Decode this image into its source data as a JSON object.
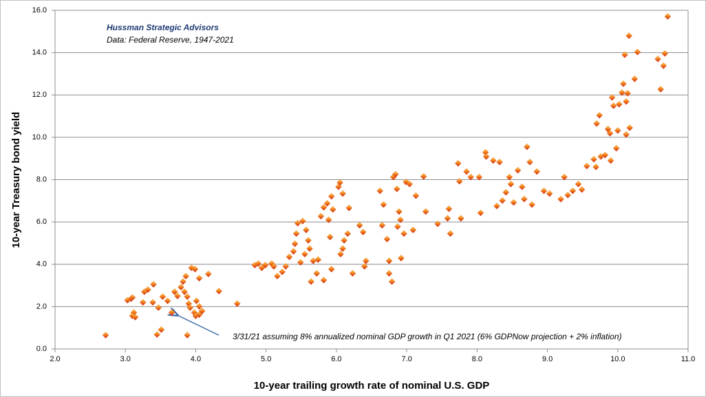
{
  "chart_data": {
    "type": "scatter",
    "title": "Hussman Strategic Advisors",
    "subtitle": "Data: Federal Reserve, 1947-2021",
    "x_label": "10-year trailing growth rate of nominal U.S. GDP",
    "y_label": "10-year Treasury bond yield",
    "annotation": "3/31/21  assuming 8% annualized nominal GDP growth in Q1 2021  (6% GDPNow projection + 2% inflation)",
    "color": "#e8641c",
    "grid": true,
    "xlim": [
      2,
      11
    ],
    "ylim": [
      0,
      16
    ],
    "xticks": [
      {
        "value": 2,
        "label": "2.0"
      },
      {
        "value": 3,
        "label": "3.0"
      },
      {
        "value": 4,
        "label": "4.0"
      },
      {
        "value": 5,
        "label": "5.0"
      },
      {
        "value": 6,
        "label": "6.0"
      },
      {
        "value": 7,
        "label": "7.0"
      },
      {
        "value": 8,
        "label": "8.0"
      },
      {
        "value": 9,
        "label": "9.0"
      },
      {
        "value": 10,
        "label": "10.0"
      },
      {
        "value": 11,
        "label": "11.0"
      }
    ],
    "yticks": [
      {
        "value": 0,
        "label": "0.0"
      },
      {
        "value": 2,
        "label": "2.0"
      },
      {
        "value": 4,
        "label": "4.0"
      },
      {
        "value": 6,
        "label": "6.0"
      },
      {
        "value": 8,
        "label": "8.0"
      },
      {
        "value": 10,
        "label": "10.0"
      },
      {
        "value": 12,
        "label": "12.0"
      },
      {
        "value": 14,
        "label": "14.0"
      },
      {
        "value": 16,
        "label": "16.0"
      }
    ],
    "x": [
      2.72,
      3.03,
      3.08,
      3.1,
      3.12,
      3.1,
      3.14,
      3.27,
      3.32,
      3.4,
      3.39,
      3.25,
      3.47,
      3.45,
      3.51,
      3.53,
      3.6,
      3.66,
      3.7,
      3.74,
      3.79,
      3.82,
      3.86,
      3.84,
      3.88,
      3.9,
      3.92,
      3.94,
      3.99,
      4.01,
      4.05,
      3.98,
      4.0,
      4.05,
      4.09,
      3.88,
      4.05,
      4.18,
      4.33,
      4.59,
      4.84,
      4.89,
      4.94,
      4.99,
      5.08,
      5.11,
      5.16,
      5.23,
      5.28,
      5.33,
      5.39,
      5.41,
      5.43,
      5.45,
      5.52,
      5.57,
      5.6,
      5.55,
      5.49,
      5.62,
      5.67,
      5.64,
      5.72,
      5.74,
      5.78,
      5.82,
      5.87,
      5.89,
      5.91,
      5.95,
      5.93,
      6.03,
      6.05,
      6.09,
      6.11,
      6.16,
      6.09,
      6.06,
      5.82,
      5.93,
      6.23,
      6.18,
      6.33,
      6.38,
      6.4,
      6.42,
      6.62,
      6.67,
      6.65,
      6.72,
      6.75,
      6.79,
      6.75,
      6.81,
      6.84,
      6.86,
      6.89,
      6.91,
      6.87,
      6.96,
      6.92,
      6.99,
      7.04,
      7.09,
      7.13,
      7.24,
      7.27,
      7.44,
      7.58,
      7.6,
      7.62,
      7.73,
      7.75,
      7.77,
      7.85,
      7.91,
      8.03,
      8.05,
      8.12,
      8.13,
      8.23,
      8.32,
      8.28,
      8.36,
      8.41,
      8.46,
      8.48,
      8.52,
      8.58,
      8.64,
      8.67,
      8.71,
      8.75,
      8.78,
      8.85,
      8.95,
      9.03,
      9.19,
      9.24,
      9.29,
      9.36,
      9.44,
      9.49,
      9.56,
      9.66,
      9.69,
      9.7,
      9.74,
      9.76,
      9.82,
      9.86,
      9.89,
      9.9,
      9.92,
      9.94,
      9.98,
      10.0,
      10.02,
      10.06,
      10.08,
      10.1,
      10.12,
      10.12,
      10.14,
      10.16,
      10.17,
      10.24,
      10.28,
      10.57,
      10.61,
      10.65,
      10.67,
      10.71,
      3.66
    ],
    "values": [
      0.65,
      2.3,
      2.37,
      2.43,
      1.72,
      1.56,
      1.5,
      2.7,
      2.8,
      3.05,
      2.2,
      2.2,
      1.95,
      0.68,
      0.91,
      2.47,
      2.27,
      1.72,
      2.7,
      2.5,
      2.92,
      3.18,
      3.44,
      2.7,
      2.47,
      2.14,
      1.95,
      3.83,
      3.77,
      2.27,
      2.01,
      1.72,
      1.56,
      1.62,
      1.79,
      0.65,
      3.34,
      3.54,
      2.73,
      2.14,
      3.96,
      4.03,
      3.83,
      3.96,
      4.03,
      3.9,
      3.44,
      3.64,
      3.9,
      4.35,
      4.61,
      4.97,
      5.45,
      5.94,
      6.04,
      5.62,
      5.13,
      4.48,
      4.09,
      4.74,
      4.16,
      3.18,
      3.57,
      4.22,
      6.27,
      6.69,
      6.88,
      6.1,
      5.29,
      6.59,
      7.21,
      7.66,
      7.86,
      7.34,
      5.13,
      5.45,
      4.74,
      4.48,
      3.25,
      3.77,
      3.57,
      6.66,
      5.84,
      5.52,
      3.9,
      4.16,
      7.47,
      6.82,
      5.84,
      5.19,
      3.57,
      3.18,
      4.16,
      8.12,
      8.25,
      7.56,
      6.49,
      6.1,
      5.78,
      5.45,
      4.29,
      7.89,
      7.79,
      5.62,
      7.24,
      8.15,
      6.49,
      5.91,
      6.17,
      6.62,
      5.45,
      8.77,
      7.92,
      6.17,
      8.38,
      8.12,
      8.12,
      6.43,
      9.29,
      9.09,
      8.9,
      8.83,
      6.75,
      7.01,
      7.4,
      8.12,
      7.79,
      6.92,
      8.44,
      7.66,
      7.08,
      9.55,
      8.83,
      6.82,
      8.38,
      7.47,
      7.34,
      7.08,
      8.12,
      7.27,
      7.47,
      7.79,
      7.53,
      8.64,
      8.96,
      8.6,
      10.65,
      11.04,
      9.09,
      9.16,
      10.39,
      10.19,
      8.9,
      11.88,
      11.49,
      9.48,
      10.32,
      11.56,
      12.11,
      12.53,
      13.9,
      10.13,
      11.69,
      12.08,
      14.8,
      10.45,
      12.76,
      14.03,
      13.7,
      12.27,
      13.38,
      13.96,
      15.71,
      1.72
    ]
  }
}
